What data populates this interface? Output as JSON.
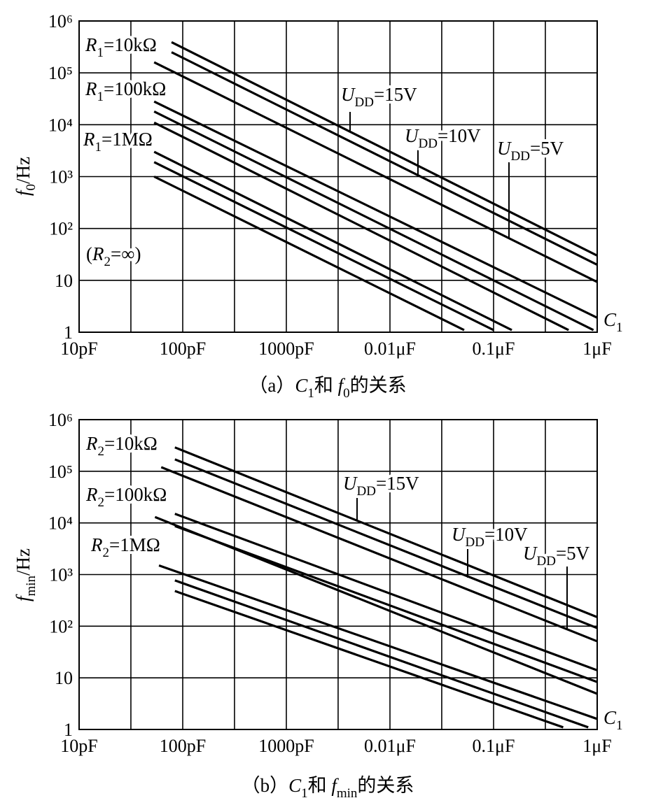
{
  "chart_data": [
    {
      "type": "line",
      "xscale": "log",
      "yscale": "log",
      "grid": true,
      "color": "#000000",
      "ylabel": [
        {
          "text": "f",
          "style": "italic"
        },
        {
          "text": "0",
          "style": "sub"
        },
        {
          "text": "/Hz"
        }
      ],
      "caption": [
        {
          "text": "（a）"
        },
        {
          "text": "C",
          "style": "italic"
        },
        {
          "text": "1",
          "style": "sub"
        },
        {
          "text": "和 "
        },
        {
          "text": "f",
          "style": "italic"
        },
        {
          "text": "0",
          "style": "sub"
        },
        {
          "text": "的关系"
        }
      ],
      "xlim": [
        10,
        1000000
      ],
      "ylim": [
        1,
        1000000
      ],
      "xticks": [
        {
          "value": 10,
          "label": "10pF"
        },
        {
          "value": 100,
          "label": "100pF"
        },
        {
          "value": 1000,
          "label": "1000pF"
        },
        {
          "value": 10000,
          "label": "0.01μF"
        },
        {
          "value": 100000,
          "label": "0.1μF"
        },
        {
          "value": 1000000,
          "label": "1μF"
        }
      ],
      "x_minor_grid": [
        31.6,
        316,
        3160,
        31600,
        316000
      ],
      "yticks": [
        1,
        10,
        {
          "value": 100,
          "label": "10²"
        },
        {
          "value": 1000,
          "label": "10³"
        },
        {
          "value": 10000,
          "label": "10⁴"
        },
        {
          "value": 100000,
          "label": "10⁵"
        },
        {
          "value": 1000000,
          "label": "10⁶"
        }
      ],
      "series": [
        {
          "x": [
            78,
            1000000
          ],
          "values": [
            390000,
            30
          ]
        },
        {
          "x": [
            78,
            1000000
          ],
          "values": [
            250000,
            20
          ]
        },
        {
          "x": [
            53,
            1000000
          ],
          "values": [
            160000,
            9.3
          ]
        },
        {
          "x": [
            53,
            1000000
          ],
          "values": [
            28000,
            1.9
          ]
        },
        {
          "x": [
            53,
            920000
          ],
          "values": [
            18000,
            1.1
          ]
        },
        {
          "x": [
            53,
            530000
          ],
          "values": [
            11000,
            1.1
          ]
        },
        {
          "x": [
            53,
            150000
          ],
          "values": [
            3000,
            1.1
          ]
        },
        {
          "x": [
            53,
            100000
          ],
          "values": [
            1900,
            1.1
          ]
        },
        {
          "x": [
            53,
            52000
          ],
          "values": [
            1000,
            1.1
          ]
        }
      ],
      "annotations": [
        [
          {
            "text": "R",
            "style": "italic"
          },
          {
            "text": "1",
            "style": "sub"
          },
          {
            "text": "=10kΩ"
          }
        ],
        [
          {
            "text": "R",
            "style": "italic"
          },
          {
            "text": "1",
            "style": "sub"
          },
          {
            "text": "=100kΩ"
          }
        ],
        [
          {
            "text": "R",
            "style": "italic"
          },
          {
            "text": "1",
            "style": "sub"
          },
          {
            "text": "=1MΩ"
          }
        ],
        [
          {
            "text": "("
          },
          {
            "text": "R",
            "style": "italic"
          },
          {
            "text": "2",
            "style": "sub"
          },
          {
            "text": "=∞)"
          }
        ],
        [
          {
            "text": "U",
            "style": "italic"
          },
          {
            "text": "DD",
            "style": "sub"
          },
          {
            "text": "=15V"
          }
        ],
        [
          {
            "text": "U",
            "style": "italic"
          },
          {
            "text": "DD",
            "style": "sub"
          },
          {
            "text": "=10V"
          }
        ],
        [
          {
            "text": "U",
            "style": "italic"
          },
          {
            "text": "DD",
            "style": "sub"
          },
          {
            "text": "=5V"
          }
        ],
        [
          {
            "text": "C",
            "style": "italic"
          },
          {
            "text": "1",
            "style": "sub"
          }
        ]
      ]
    },
    {
      "type": "line",
      "xscale": "log",
      "yscale": "log",
      "grid": true,
      "color": "#000000",
      "ylabel": [
        {
          "text": "f",
          "style": "italic"
        },
        {
          "text": "min",
          "style": "sub"
        },
        {
          "text": "/Hz"
        }
      ],
      "caption": [
        {
          "text": "（b）"
        },
        {
          "text": "C",
          "style": "italic"
        },
        {
          "text": "1",
          "style": "sub"
        },
        {
          "text": "和 "
        },
        {
          "text": "f",
          "style": "italic"
        },
        {
          "text": "min",
          "style": "sub"
        },
        {
          "text": "的关系"
        }
      ],
      "xlim": [
        10,
        1000000
      ],
      "ylim": [
        1,
        1000000
      ],
      "xticks": [
        {
          "value": 10,
          "label": "10pF"
        },
        {
          "value": 100,
          "label": "100pF"
        },
        {
          "value": 1000,
          "label": "1000pF"
        },
        {
          "value": 10000,
          "label": "0.01μF"
        },
        {
          "value": 100000,
          "label": "0.1μF"
        },
        {
          "value": 1000000,
          "label": "1μF"
        }
      ],
      "x_minor_grid": [
        31.6,
        316,
        3160,
        31600,
        316000
      ],
      "yticks": [
        1,
        10,
        {
          "value": 100,
          "label": "10²"
        },
        {
          "value": 1000,
          "label": "10³"
        },
        {
          "value": 10000,
          "label": "10⁴"
        },
        {
          "value": 100000,
          "label": "10⁵"
        },
        {
          "value": 1000000,
          "label": "10⁶"
        }
      ],
      "series": [
        {
          "x": [
            84,
            1000000
          ],
          "values": [
            290000,
            150
          ]
        },
        {
          "x": [
            84,
            1000000
          ],
          "values": [
            170000,
            92
          ]
        },
        {
          "x": [
            62,
            1000000
          ],
          "values": [
            120000,
            51
          ]
        },
        {
          "x": [
            84,
            1000000
          ],
          "values": [
            15000,
            14
          ]
        },
        {
          "x": [
            84,
            1000000
          ],
          "values": [
            8700,
            8.3
          ]
        },
        {
          "x": [
            54,
            1000000
          ],
          "values": [
            13000,
            4.9
          ]
        },
        {
          "x": [
            59,
            1000000
          ],
          "values": [
            1500,
            1.6
          ]
        },
        {
          "x": [
            84,
            820000
          ],
          "values": [
            770,
            1.1
          ]
        },
        {
          "x": [
            84,
            470000
          ],
          "values": [
            480,
            1.1
          ]
        }
      ],
      "annotations": [
        [
          {
            "text": "R",
            "style": "italic"
          },
          {
            "text": "2",
            "style": "sub"
          },
          {
            "text": "=10kΩ"
          }
        ],
        [
          {
            "text": "R",
            "style": "italic"
          },
          {
            "text": "2",
            "style": "sub"
          },
          {
            "text": "=100kΩ"
          }
        ],
        [
          {
            "text": "R",
            "style": "italic"
          },
          {
            "text": "2",
            "style": "sub"
          },
          {
            "text": "=1MΩ"
          }
        ],
        [
          {
            "text": "U",
            "style": "italic"
          },
          {
            "text": "DD",
            "style": "sub"
          },
          {
            "text": "=15V"
          }
        ],
        [
          {
            "text": "U",
            "style": "italic"
          },
          {
            "text": "DD",
            "style": "sub"
          },
          {
            "text": "=10V"
          }
        ],
        [
          {
            "text": "U",
            "style": "italic"
          },
          {
            "text": "DD",
            "style": "sub"
          },
          {
            "text": "=5V"
          }
        ],
        [
          {
            "text": "C",
            "style": "italic"
          },
          {
            "text": "1",
            "style": "sub"
          }
        ]
      ]
    }
  ]
}
